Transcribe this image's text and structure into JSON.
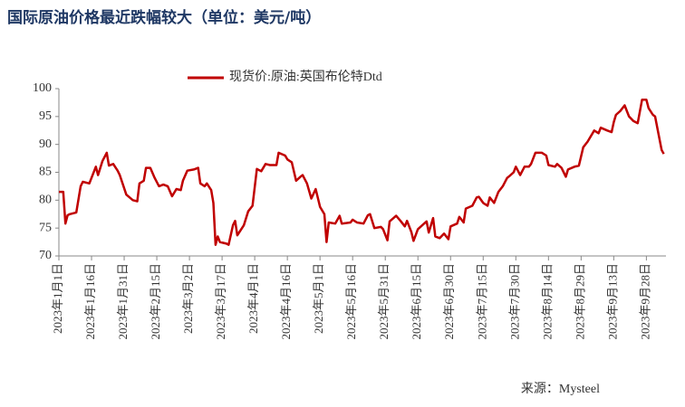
{
  "chart_data": {
    "type": "line",
    "title": "国际原油价格最近跌幅较大（单位：美元/吨）",
    "source": "来源：Mysteel",
    "xlim": [
      0,
      279
    ],
    "xticks": [
      {
        "value": 0,
        "label": "2023年1月1日"
      },
      {
        "value": 15,
        "label": "2023年1月16日"
      },
      {
        "value": 30,
        "label": "2023年1月31日"
      },
      {
        "value": 45,
        "label": "2023年2月15日"
      },
      {
        "value": 60,
        "label": "2023年3月2日"
      },
      {
        "value": 75,
        "label": "2023年3月17日"
      },
      {
        "value": 90,
        "label": "2023年4月1日"
      },
      {
        "value": 105,
        "label": "2023年4月16日"
      },
      {
        "value": 120,
        "label": "2023年5月1日"
      },
      {
        "value": 135,
        "label": "2023年5月16日"
      },
      {
        "value": 150,
        "label": "2023年5月31日"
      },
      {
        "value": 165,
        "label": "2023年6月15日"
      },
      {
        "value": 180,
        "label": "2023年6月30日"
      },
      {
        "value": 195,
        "label": "2023年7月15日"
      },
      {
        "value": 210,
        "label": "2023年7月30日"
      },
      {
        "value": 225,
        "label": "2023年8月14日"
      },
      {
        "value": 240,
        "label": "2023年8月29日"
      },
      {
        "value": 255,
        "label": "2023年9月13日"
      },
      {
        "value": 270,
        "label": "2023年9月28日"
      }
    ],
    "ylim": [
      70,
      100
    ],
    "yticks": [
      70,
      75,
      80,
      85,
      90,
      95,
      100
    ],
    "grid": false,
    "legend": "top",
    "x": [
      0,
      2,
      3,
      4,
      5,
      8,
      10,
      11,
      14,
      17,
      18,
      20,
      22,
      23,
      25,
      27,
      28,
      31,
      34,
      36,
      37,
      39,
      40,
      42,
      44,
      46,
      48,
      50,
      52,
      54,
      56,
      57,
      59,
      62,
      64,
      65,
      67,
      68,
      70,
      71,
      72,
      73,
      74,
      77,
      78,
      80,
      81,
      82,
      85,
      87,
      89,
      91,
      93,
      95,
      97,
      100,
      101,
      104,
      105,
      107,
      109,
      111,
      112,
      114,
      116,
      118,
      120,
      122,
      123,
      124,
      127,
      129,
      130,
      134,
      135,
      137,
      140,
      142,
      143,
      145,
      148,
      149,
      151,
      152,
      155,
      157,
      159,
      160,
      162,
      163,
      165,
      167,
      169,
      170,
      172,
      173,
      175,
      177,
      179,
      180,
      183,
      184,
      186,
      187,
      190,
      192,
      193,
      195,
      197,
      198,
      200,
      202,
      204,
      206,
      207,
      209,
      210,
      212,
      214,
      216,
      217,
      219,
      222,
      224,
      225,
      228,
      229,
      231,
      233,
      234,
      237,
      239,
      241,
      243,
      246,
      248,
      249,
      252,
      254,
      255,
      256,
      258,
      260,
      262,
      264,
      266,
      268,
      270,
      271,
      273,
      274,
      276,
      277,
      278
    ],
    "series": [
      {
        "name": "现货价:原油:英国布伦特Dtd",
        "color": "#c00000",
        "values": [
          81.5,
          81.5,
          75.8,
          77.3,
          77.5,
          77.8,
          82.5,
          83.3,
          83.0,
          86,
          84.5,
          87,
          88.5,
          86.2,
          86.5,
          85.3,
          84.5,
          81,
          80,
          79.8,
          83,
          83.5,
          85.8,
          85.8,
          84,
          82.5,
          82.8,
          82.5,
          80.7,
          82,
          81.8,
          83.5,
          85.3,
          85.5,
          85.8,
          83,
          82.5,
          83,
          81.8,
          79.5,
          72,
          73.5,
          72.5,
          72.2,
          72,
          75.5,
          76.3,
          73.7,
          75.5,
          78,
          79,
          85.6,
          85.2,
          86.5,
          86.3,
          86.3,
          88.5,
          88,
          87.3,
          86.8,
          83.5,
          84.2,
          84.5,
          83,
          80.3,
          82,
          78.8,
          77.5,
          72.5,
          76,
          75.8,
          77.2,
          75.8,
          76,
          76.5,
          76,
          75.8,
          77.3,
          77.5,
          75,
          75.2,
          74.8,
          72.8,
          76.2,
          77.2,
          76.3,
          75.3,
          76.3,
          74.3,
          72.7,
          74.8,
          75.5,
          76.2,
          74.2,
          76.8,
          73.5,
          73.2,
          74,
          73,
          75.3,
          75.8,
          77,
          76,
          78.5,
          79,
          80.5,
          80.6,
          79.5,
          79,
          80.5,
          79.5,
          81.5,
          82.5,
          84,
          84.3,
          85,
          86,
          84.5,
          86,
          86,
          86.5,
          88.5,
          88.5,
          88,
          86.3,
          86,
          86.5,
          85.8,
          84.2,
          85.5,
          86,
          86.2,
          89.5,
          90.5,
          92.5,
          92,
          93,
          92.5,
          92.2,
          94,
          95.3,
          96,
          97,
          95,
          94.2,
          93.8,
          98,
          98,
          96.5,
          95.3,
          95,
          91,
          89,
          88.3
        ]
      }
    ]
  }
}
